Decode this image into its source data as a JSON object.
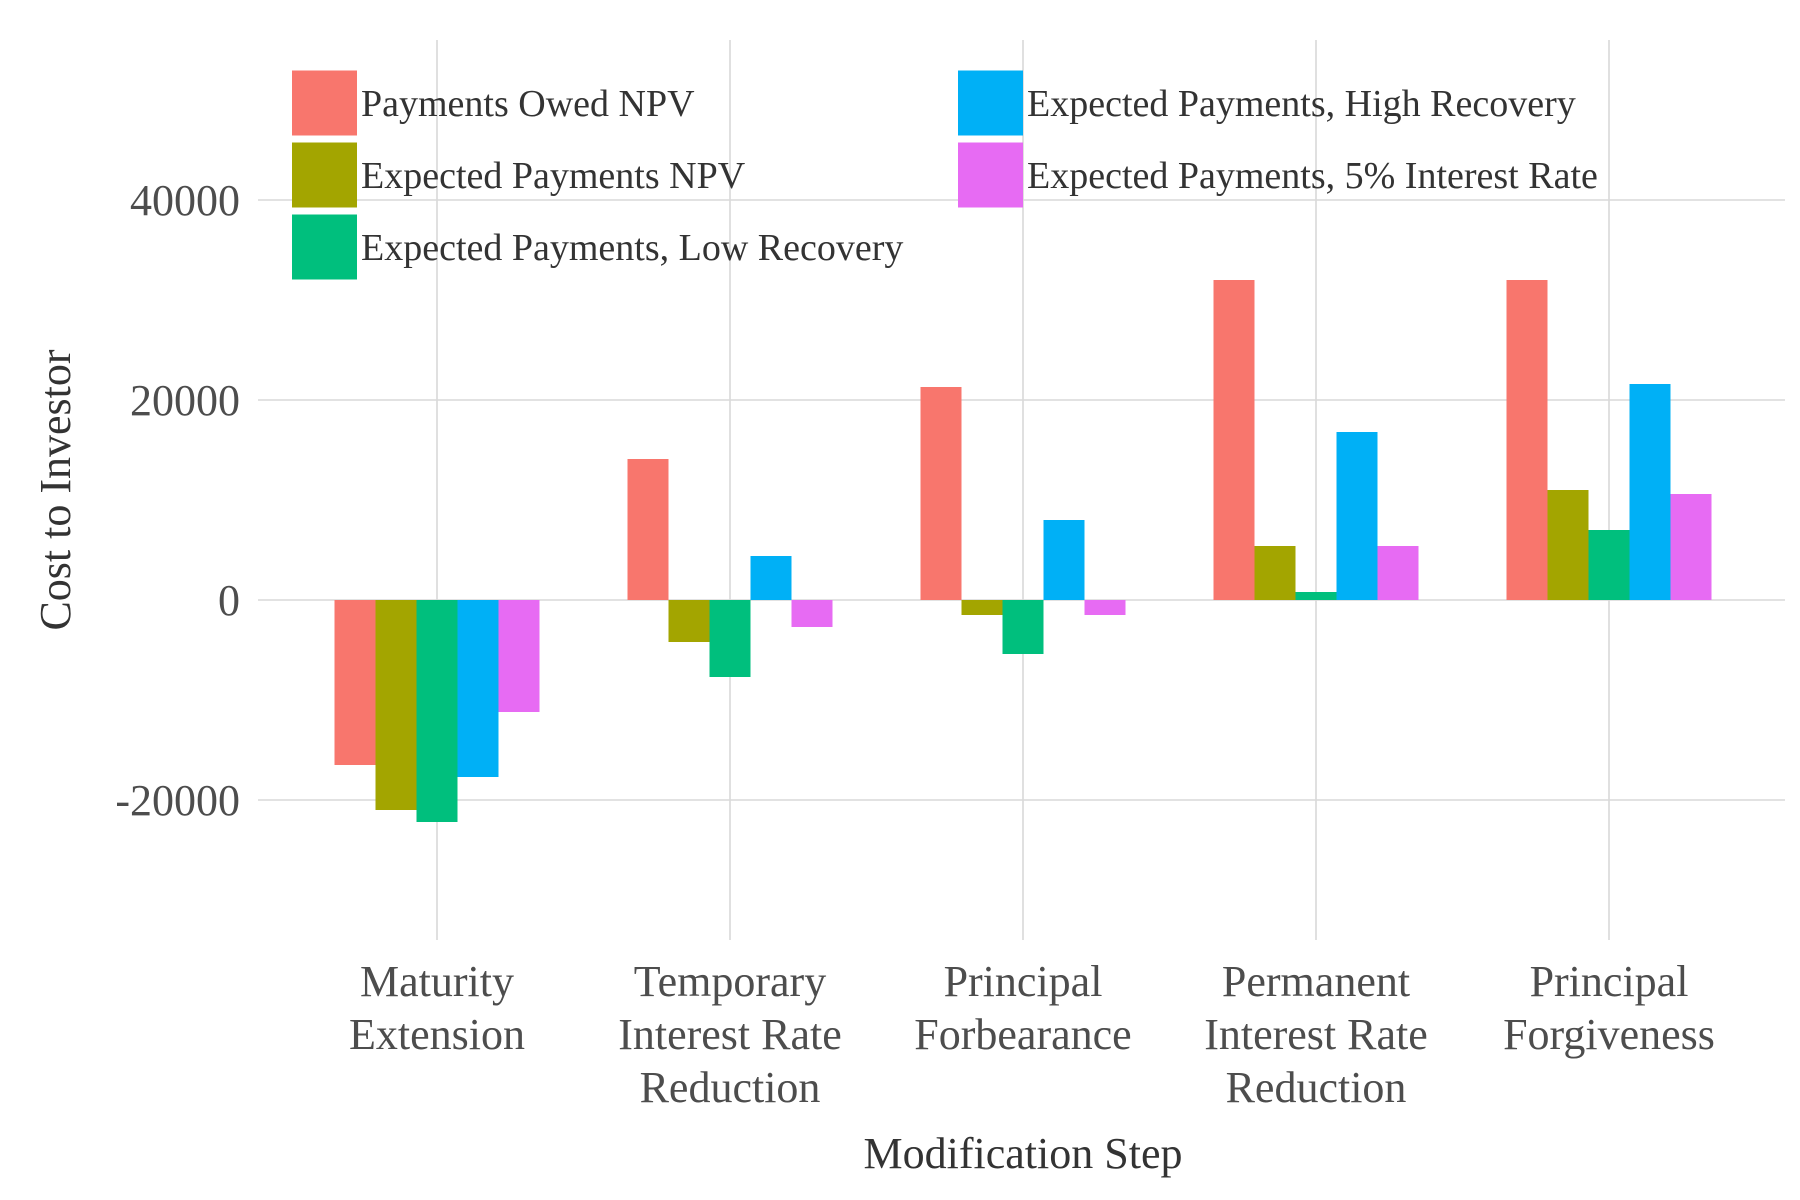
{
  "chart_data": {
    "type": "bar",
    "title": "",
    "xlabel": "Modification Step",
    "ylabel": "Cost to Investor",
    "ylim": [
      -34000,
      56000
    ],
    "yticks": [
      -20000,
      0,
      20000,
      40000
    ],
    "ytick_labels": [
      "-20000",
      "0",
      "20000",
      "40000"
    ],
    "grid": true,
    "legend_position": "top-left",
    "categories": [
      [
        "Maturity",
        "Extension"
      ],
      [
        "Temporary",
        "Interest Rate",
        "Reduction"
      ],
      [
        "Principal",
        "Forbearance"
      ],
      [
        "Permanent",
        "Interest Rate",
        "Reduction"
      ],
      [
        "Principal",
        "Forgiveness"
      ]
    ],
    "series": [
      {
        "name": "Payments Owed NPV",
        "color": "#F8766D",
        "values": [
          -16500,
          14100,
          21300,
          32000,
          32000
        ]
      },
      {
        "name": "Expected Payments NPV",
        "color": "#A3A500",
        "values": [
          -21000,
          -4200,
          -1500,
          5400,
          11000
        ]
      },
      {
        "name": "Expected Payments, Low Recovery",
        "color": "#00BF7D",
        "values": [
          -22200,
          -7700,
          -5400,
          800,
          7000
        ]
      },
      {
        "name": "Expected Payments, High Recovery",
        "color": "#00B0F6",
        "values": [
          -17700,
          4400,
          8000,
          16800,
          21600
        ]
      },
      {
        "name": "Expected Payments, 5% Interest Rate",
        "color": "#E76BF3",
        "values": [
          -11200,
          -2700,
          -1500,
          5400,
          10600
        ]
      }
    ]
  }
}
